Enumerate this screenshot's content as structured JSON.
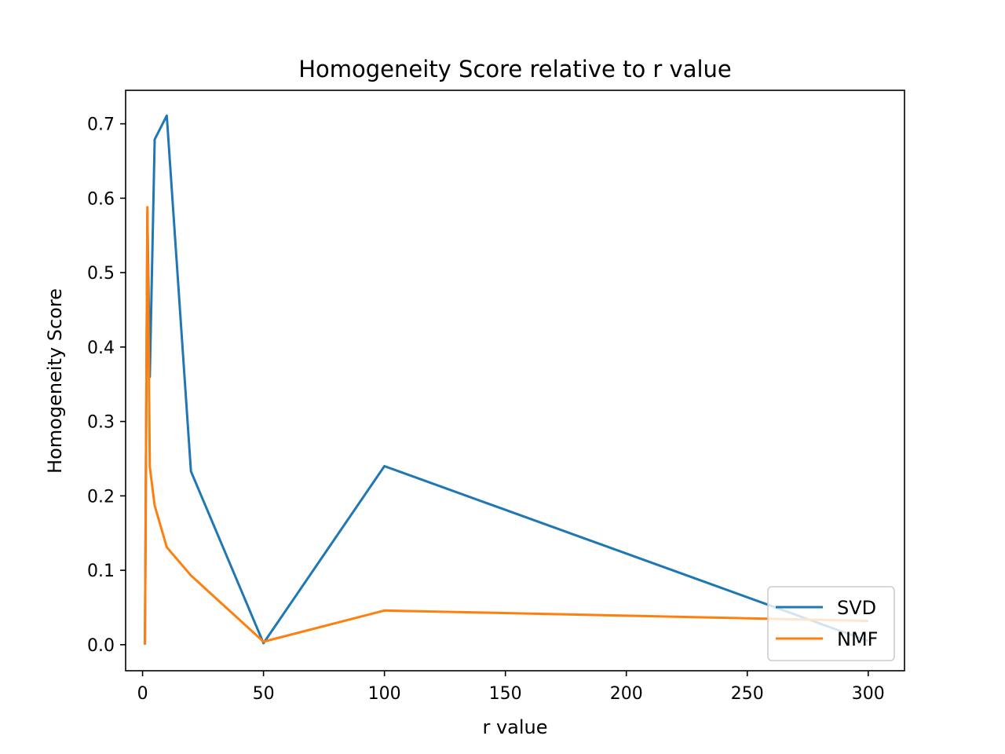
{
  "chart_data": {
    "type": "line",
    "title": "Homogeneity Score relative to r value",
    "xlabel": "r value",
    "ylabel": "Homogeneity Score",
    "xlim": [
      -7,
      315
    ],
    "ylim": [
      -0.035,
      0.745
    ],
    "xticks": [
      0,
      50,
      100,
      150,
      200,
      250,
      300
    ],
    "yticks": [
      0.0,
      0.1,
      0.2,
      0.3,
      0.4,
      0.5,
      0.6,
      0.7
    ],
    "xtick_labels": [
      "0",
      "50",
      "100",
      "150",
      "200",
      "250",
      "300"
    ],
    "ytick_labels": [
      "0.0",
      "0.1",
      "0.2",
      "0.3",
      "0.4",
      "0.5",
      "0.6",
      "0.7"
    ],
    "grid": false,
    "legend_position": "lower right",
    "series": [
      {
        "name": "SVD",
        "color": "#1f77b4",
        "x": [
          1,
          2,
          3,
          5,
          10,
          20,
          50,
          100,
          300
        ],
        "y": [
          0.0,
          0.58,
          0.36,
          0.679,
          0.711,
          0.233,
          0.002,
          0.24,
          0.005
        ]
      },
      {
        "name": "NMF",
        "color": "#ff7f0e",
        "x": [
          1,
          2,
          3,
          5,
          10,
          20,
          50,
          100,
          300
        ],
        "y": [
          0.0,
          0.588,
          0.239,
          0.187,
          0.131,
          0.093,
          0.004,
          0.046,
          0.032
        ]
      }
    ]
  }
}
